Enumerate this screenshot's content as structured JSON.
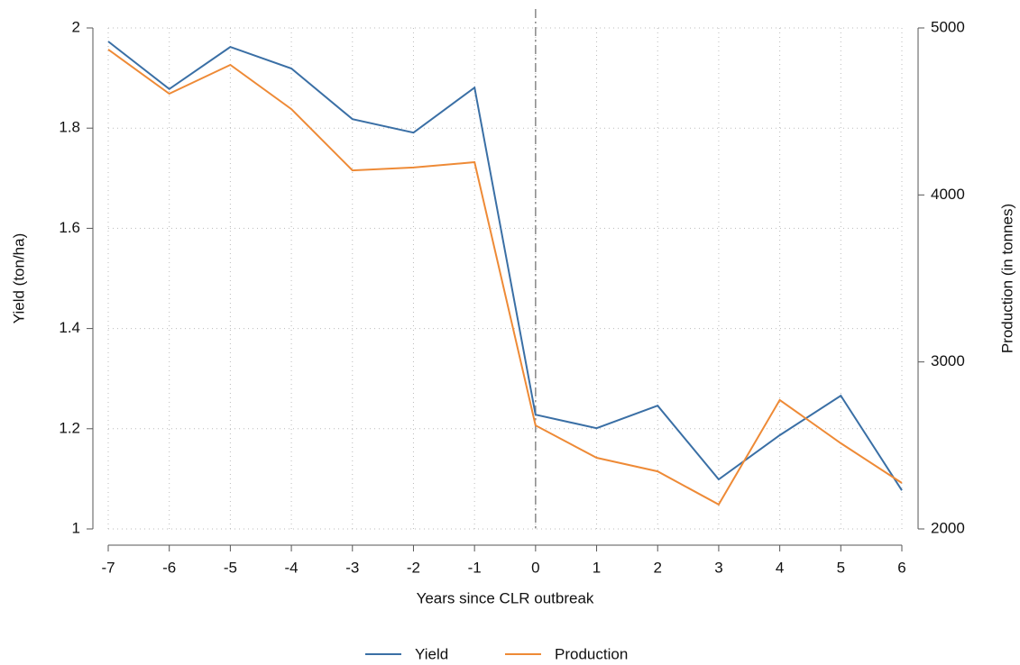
{
  "chart_data": {
    "type": "line",
    "x_label": "Years since CLR outbreak",
    "y_label": "Yield (ton/ha)",
    "y2_label": "Production (in tonnes)",
    "x": [
      -7,
      -6,
      -5,
      -4,
      -3,
      -2,
      -1,
      0,
      1,
      2,
      3,
      4,
      5,
      6
    ],
    "xlim": [
      -7,
      6
    ],
    "xticks": [
      -7,
      -6,
      -5,
      -4,
      -3,
      -2,
      -1,
      0,
      1,
      2,
      3,
      4,
      5,
      6
    ],
    "ylim": [
      1,
      2
    ],
    "yticks": [
      1,
      1.2,
      1.4,
      1.6,
      1.8,
      2
    ],
    "y2lim": [
      2000,
      5000
    ],
    "y2ticks": [
      2000,
      3000,
      4000,
      5000
    ],
    "vline": 0,
    "grid": true,
    "legend": "bottom",
    "series": [
      {
        "name": "Yield",
        "color": "#3a6fa5",
        "axis": "y",
        "values": [
          1.973,
          1.878,
          1.962,
          1.919,
          1.818,
          1.791,
          1.881,
          1.228,
          1.201,
          1.246,
          1.099,
          1.187,
          1.266,
          1.077
        ]
      },
      {
        "name": "Production",
        "color": "#ee8a36",
        "axis": "y2",
        "values": [
          4871,
          4606,
          4779,
          4514,
          4147,
          4164,
          4196,
          2620,
          2426,
          2345,
          2146,
          2772,
          2513,
          2275
        ]
      }
    ]
  }
}
